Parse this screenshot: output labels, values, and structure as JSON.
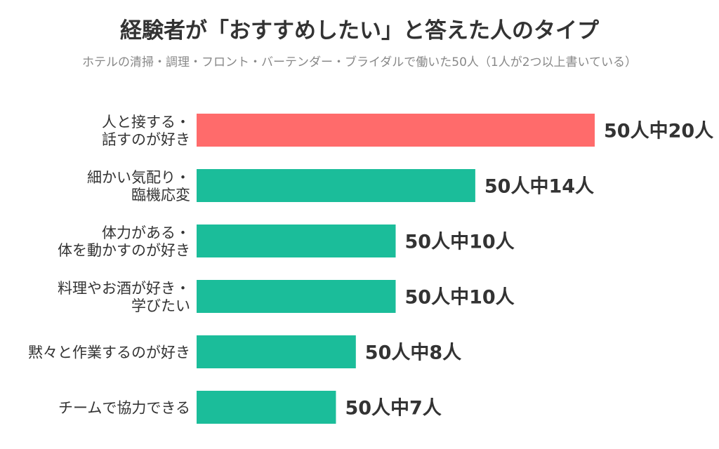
{
  "title": "経験者が「おすすめしたい」と答えた人のタイプ",
  "subtitle": "ホテルの清掃・調理・フロント・バーテンダー・ブライダルで働いた50人（1人が2つ以上書いている）",
  "colors": {
    "highlight": "#ff6b6b",
    "bar": "#1bbd9a",
    "text": "#333333",
    "subtext": "#888888"
  },
  "chart_data": {
    "type": "bar",
    "orientation": "horizontal",
    "total": 50,
    "unit": "人",
    "xlim": [
      0,
      20
    ],
    "grid": false,
    "categories": [
      [
        "人と接する・",
        "話すのが好き"
      ],
      [
        "細かい気配り・",
        "臨機応変"
      ],
      [
        "体力がある・",
        "体を動かすのが好き"
      ],
      [
        "料理やお酒が好き・",
        "学びたい"
      ],
      [
        "黙々と作業するのが好き"
      ],
      [
        "チームで協力できる"
      ]
    ],
    "values": [
      20,
      14,
      10,
      10,
      8,
      7
    ],
    "value_labels": [
      "50人中20人",
      "50人中14人",
      "50人中10人",
      "50人中10人",
      "50人中8人",
      "50人中7人"
    ],
    "highlight_index": 0
  }
}
